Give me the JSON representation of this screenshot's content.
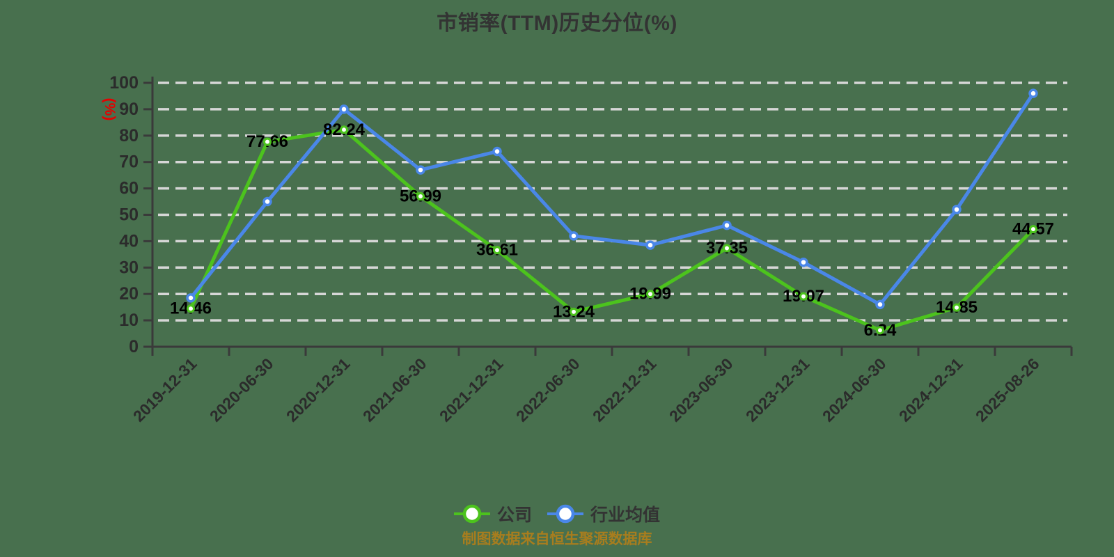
{
  "title": {
    "text": "市销率(TTM)历史分位(%)",
    "color": "#333333"
  },
  "y_axis_label": {
    "text": "(%)",
    "color": "#e60000"
  },
  "footer": {
    "text": "制图数据来自恒生聚源数据库",
    "color": "#a87d1e"
  },
  "legend": {
    "items": [
      {
        "key": "company",
        "label": "公司",
        "color": "#4cc31d"
      },
      {
        "key": "industry-average",
        "label": "行业均值",
        "color": "#4a87e8"
      }
    ]
  },
  "colors": {
    "background": "#48704e",
    "grid": "#d6d6d6",
    "axis": "#3a3a3a",
    "tick_label": "#2b2b2b",
    "data_label": "#000000",
    "marker_fill": "#ffffff"
  },
  "chart_data": {
    "type": "line",
    "title": "市销率(TTM)历史分位(%)",
    "ylabel": "(%)",
    "ylim": [
      0,
      100
    ],
    "ytick_interval": 10,
    "grid": "horizontal-dashed",
    "legend_position": "bottom-center",
    "categories": [
      "2019-12-31",
      "2020-06-30",
      "2020-12-31",
      "2021-06-30",
      "2021-12-31",
      "2022-06-30",
      "2022-12-31",
      "2023-06-30",
      "2023-12-31",
      "2024-06-30",
      "2024-12-31",
      "2025-08-26"
    ],
    "series": [
      {
        "name": "公司",
        "color": "#4cc31d",
        "values": [
          14.46,
          77.66,
          82.24,
          56.99,
          36.61,
          13.24,
          19.99,
          37.35,
          19.07,
          6.24,
          14.85,
          44.57
        ],
        "show_labels": true,
        "estimated": false
      },
      {
        "name": "行业均值",
        "color": "#4a87e8",
        "values": [
          18.5,
          55,
          90,
          67,
          74,
          42,
          38.5,
          46,
          32,
          16,
          52,
          96
        ],
        "show_labels": false,
        "estimated": true
      }
    ]
  }
}
